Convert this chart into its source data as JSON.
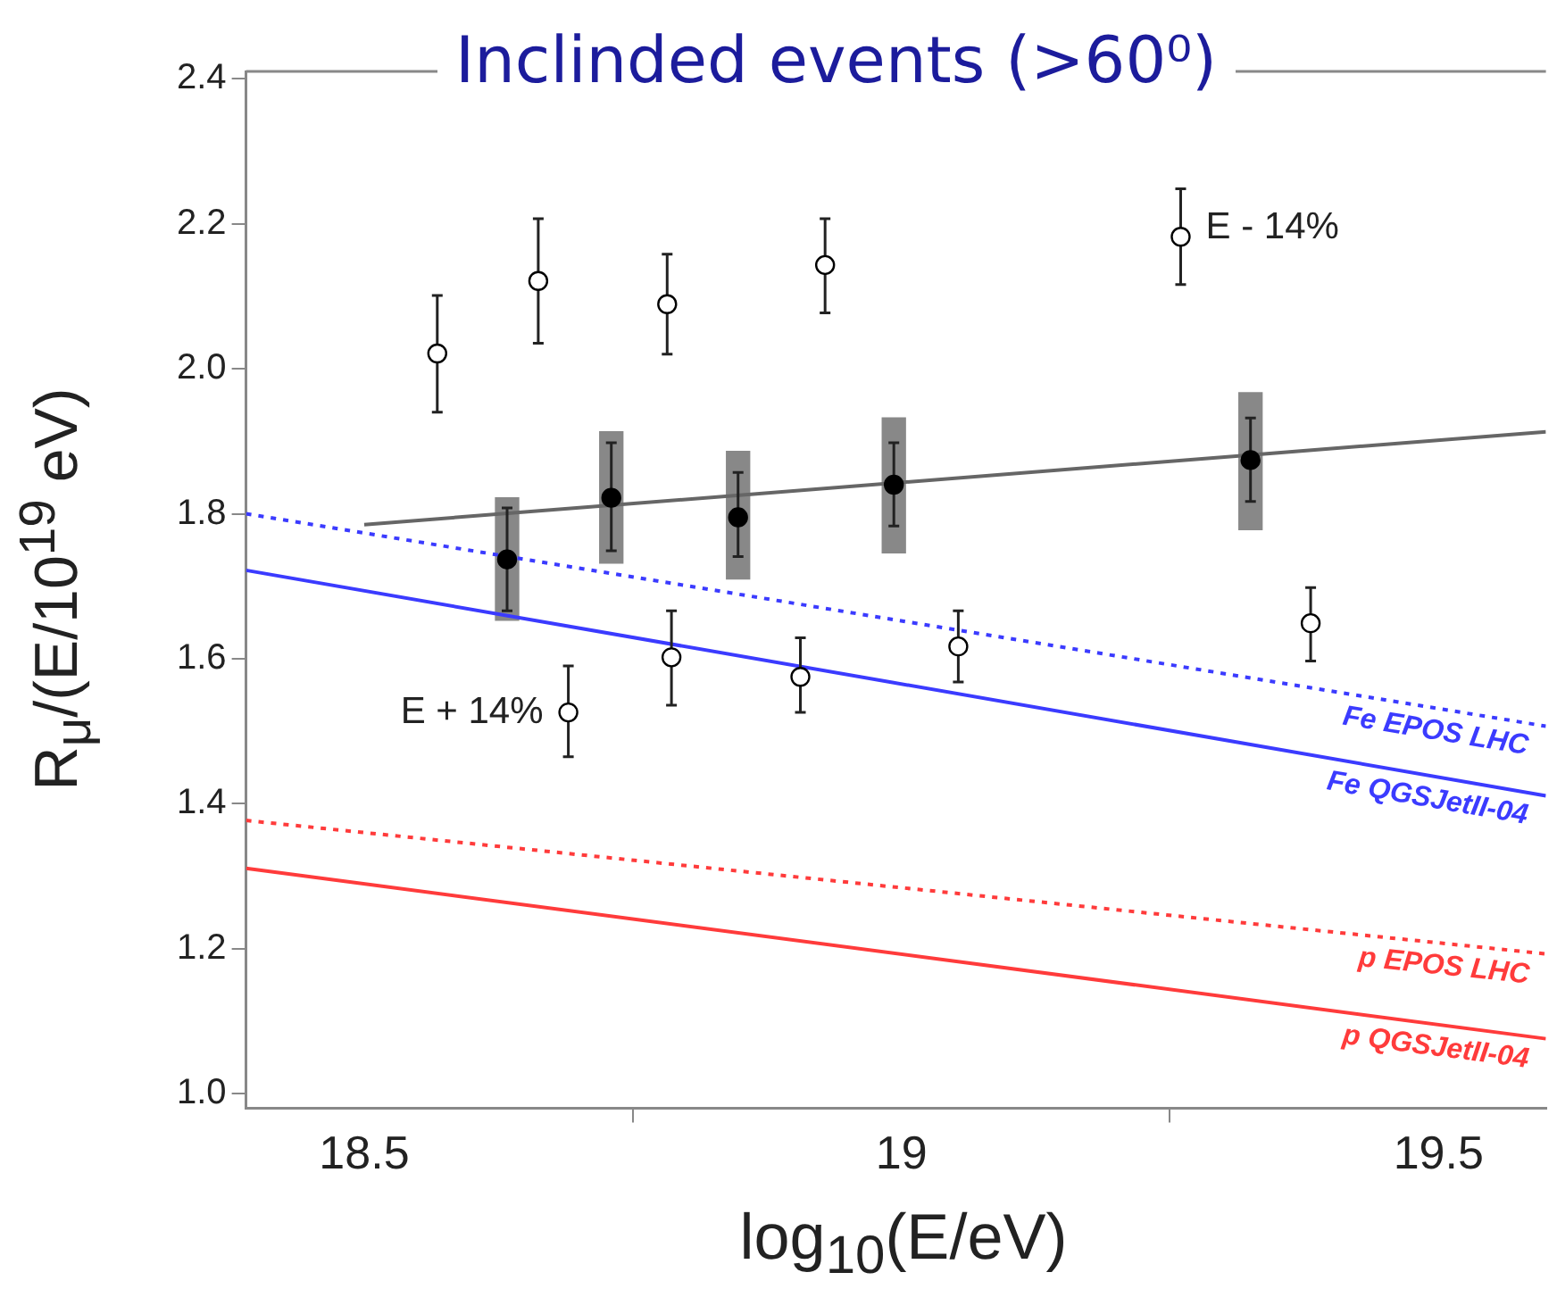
{
  "chart_data": {
    "type": "scatter",
    "title": "Inclinded events (>60⁰)",
    "xlabel": "log$_{10}$(E/eV)",
    "ylabel": "R$_{μ}$/(E/10$^{19}$ eV)",
    "xlim": [
      18.39,
      19.6
    ],
    "xticks": [
      18.5,
      19,
      19.5
    ],
    "ylim": [
      0.98,
      2.41
    ],
    "yticks": [
      {
        "value": 1,
        "label": "1.0"
      },
      1.2,
      1.4,
      1.6,
      1.8,
      {
        "value": 2,
        "label": "2.0"
      },
      2.2,
      2.4
    ],
    "series": [
      {
        "type": "bar",
        "color": "#888888",
        "x": [
          18.633,
          18.73,
          18.848,
          18.993,
          19.325
        ],
        "base": [
          1.653,
          1.732,
          1.71,
          1.746,
          1.778
        ],
        "values": [
          0.169,
          0.181,
          0.176,
          0.186,
          0.189
        ]
      },
      {
        "type": "line",
        "color": "#666666",
        "line_style": "solid",
        "x": [
          18.5,
          19.6
        ],
        "values": [
          1.785,
          1.913
        ]
      },
      {
        "type": "line",
        "name": "Fe EPOS LHC",
        "color": "#3b3bff",
        "line_style": "dotted",
        "x": [
          18.39,
          19.6
        ],
        "values": [
          1.8,
          1.507
        ]
      },
      {
        "type": "line",
        "name": "Fe QGSJetII-04",
        "color": "#3b3bff",
        "line_style": "solid",
        "x": [
          18.39,
          19.6
        ],
        "values": [
          1.722,
          1.411
        ]
      },
      {
        "type": "line",
        "name": "p EPOS LHC",
        "color": "#ff3b3b",
        "line_style": "dotted",
        "x": [
          18.39,
          19.6
        ],
        "values": [
          1.377,
          1.193
        ]
      },
      {
        "type": "line",
        "name": "p QGSJetII-04",
        "color": "#ff3b3b",
        "line_style": "solid",
        "x": [
          18.39,
          19.6
        ],
        "values": [
          1.311,
          1.076
        ]
      },
      {
        "name": "E - 14%",
        "marker": "circle",
        "color": "#ffffff",
        "x": [
          18.568,
          18.662,
          18.782,
          18.929,
          19.26
        ],
        "values": [
          2.021,
          2.121,
          2.089,
          2.143,
          2.182
        ],
        "errors": [
          [
            1.94,
            2.101
          ],
          [
            2.035,
            2.207
          ],
          [
            2.02,
            2.158
          ],
          [
            2.077,
            2.207
          ],
          [
            2.116,
            2.248
          ]
        ]
      },
      {
        "name": "E + 14%",
        "marker": "circle",
        "color": "#ffffff",
        "x": [
          18.69,
          18.786,
          18.906,
          19.053,
          19.381
        ],
        "values": [
          1.526,
          1.602,
          1.575,
          1.617,
          1.649
        ],
        "errors": [
          [
            1.465,
            1.59
          ],
          [
            1.536,
            1.666
          ],
          [
            1.526,
            1.629
          ],
          [
            1.568,
            1.666
          ],
          [
            1.597,
            1.698
          ]
        ]
      },
      {
        "marker": "circle",
        "color": "#000000",
        "x": [
          18.633,
          18.73,
          18.848,
          18.993,
          19.325
        ],
        "values": [
          1.737,
          1.822,
          1.795,
          1.84,
          1.874
        ],
        "errors": [
          [
            1.666,
            1.808
          ],
          [
            1.749,
            1.898
          ],
          [
            1.741,
            1.857
          ],
          [
            1.783,
            1.898
          ],
          [
            1.817,
            1.932
          ]
        ]
      }
    ]
  }
}
